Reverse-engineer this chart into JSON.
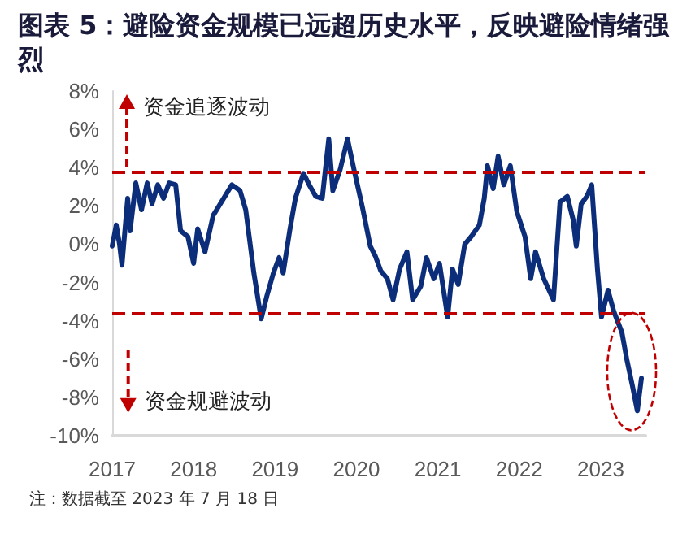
{
  "chart_data": {
    "type": "line",
    "title": "图表 5：避险资金规模已远超历史水平，反映避险情绪强烈",
    "x": [
      2017.0,
      2017.05,
      2017.09,
      2017.12,
      2017.19,
      2017.22,
      2017.29,
      2017.36,
      2017.43,
      2017.49,
      2017.56,
      2017.63,
      2017.7,
      2017.78,
      2017.84,
      2017.93,
      2018.0,
      2018.05,
      2018.14,
      2018.24,
      2018.37,
      2018.47,
      2018.57,
      2018.64,
      2018.74,
      2018.83,
      2018.9,
      2018.98,
      2019.05,
      2019.1,
      2019.18,
      2019.25,
      2019.35,
      2019.42,
      2019.5,
      2019.58,
      2019.66,
      2019.71,
      2019.8,
      2019.89,
      2019.97,
      2020.07,
      2020.17,
      2020.23,
      2020.3,
      2020.38,
      2020.45,
      2020.53,
      2020.62,
      2020.69,
      2020.79,
      2020.86,
      2020.95,
      2021.02,
      2021.12,
      2021.18,
      2021.25,
      2021.33,
      2021.41,
      2021.51,
      2021.57,
      2021.61,
      2021.68,
      2021.74,
      2021.81,
      2021.89,
      2021.97,
      2022.07,
      2022.14,
      2022.2,
      2022.3,
      2022.42,
      2022.5,
      2022.59,
      2022.66,
      2022.7,
      2022.76,
      2022.83,
      2022.89,
      2022.96,
      2023.01,
      2023.09,
      2023.16,
      2023.26,
      2023.32,
      2023.39,
      2023.45,
      2023.5
    ],
    "series": [
      {
        "color": "#0b2d7a",
        "values": [
          -0.1,
          1.0,
          0.0,
          -1.1,
          2.4,
          0.7,
          3.2,
          1.8,
          3.2,
          2.1,
          3.1,
          2.4,
          3.2,
          3.1,
          0.7,
          0.4,
          -1.0,
          0.8,
          -0.4,
          1.5,
          2.4,
          3.1,
          2.8,
          1.8,
          -1.5,
          -3.9,
          -2.7,
          -1.5,
          -0.7,
          -1.5,
          0.7,
          2.4,
          3.7,
          3.1,
          2.5,
          2.4,
          5.5,
          2.8,
          3.9,
          5.5,
          3.9,
          2.0,
          -0.1,
          -0.6,
          -1.4,
          -1.8,
          -2.9,
          -1.3,
          -0.4,
          -2.9,
          -2.2,
          -0.7,
          -1.8,
          -1.0,
          -3.8,
          -1.3,
          -2.1,
          0.0,
          0.4,
          1.0,
          2.4,
          4.1,
          2.9,
          4.6,
          3.1,
          4.1,
          1.7,
          0.4,
          -1.8,
          -0.4,
          -1.8,
          -2.9,
          2.2,
          2.5,
          1.3,
          -0.1,
          2.1,
          2.5,
          3.1,
          -1.3,
          -3.8,
          -2.4,
          -3.5,
          -4.6,
          -6.0,
          -7.4,
          -8.7,
          -7.0
        ]
      }
    ],
    "xlim": [
      2017,
      2023.55
    ],
    "xticks": [
      2017,
      2018,
      2019,
      2020,
      2021,
      2022,
      2023
    ],
    "ylim": [
      -10,
      8
    ],
    "yticks": [
      {
        "value": -10,
        "label": "-10%"
      },
      {
        "value": -8,
        "label": "-8%"
      },
      {
        "value": -6,
        "label": "-6%"
      },
      {
        "value": -4,
        "label": "-4%"
      },
      {
        "value": -2,
        "label": "-2%"
      },
      {
        "value": 0,
        "label": "0%"
      },
      {
        "value": 2,
        "label": "2%"
      },
      {
        "value": 4,
        "label": "4%"
      },
      {
        "value": 6,
        "label": "6%"
      },
      {
        "value": 8,
        "label": "8%"
      }
    ],
    "ref_lines": [
      {
        "axis": "y",
        "value": 3.8,
        "color": "#c00000",
        "line_style": "dashed"
      },
      {
        "axis": "y",
        "value": -3.6,
        "color": "#c00000",
        "line_style": "dashed"
      }
    ],
    "annotations": [
      {
        "text": "资金追逐波动",
        "x": 2017.18,
        "y": 3.8
      },
      "资金规避波动",
      "注：数据截至 2023 年 7 月 18 日"
    ],
    "grid": false,
    "marker": "none",
    "line_style": "solid"
  }
}
